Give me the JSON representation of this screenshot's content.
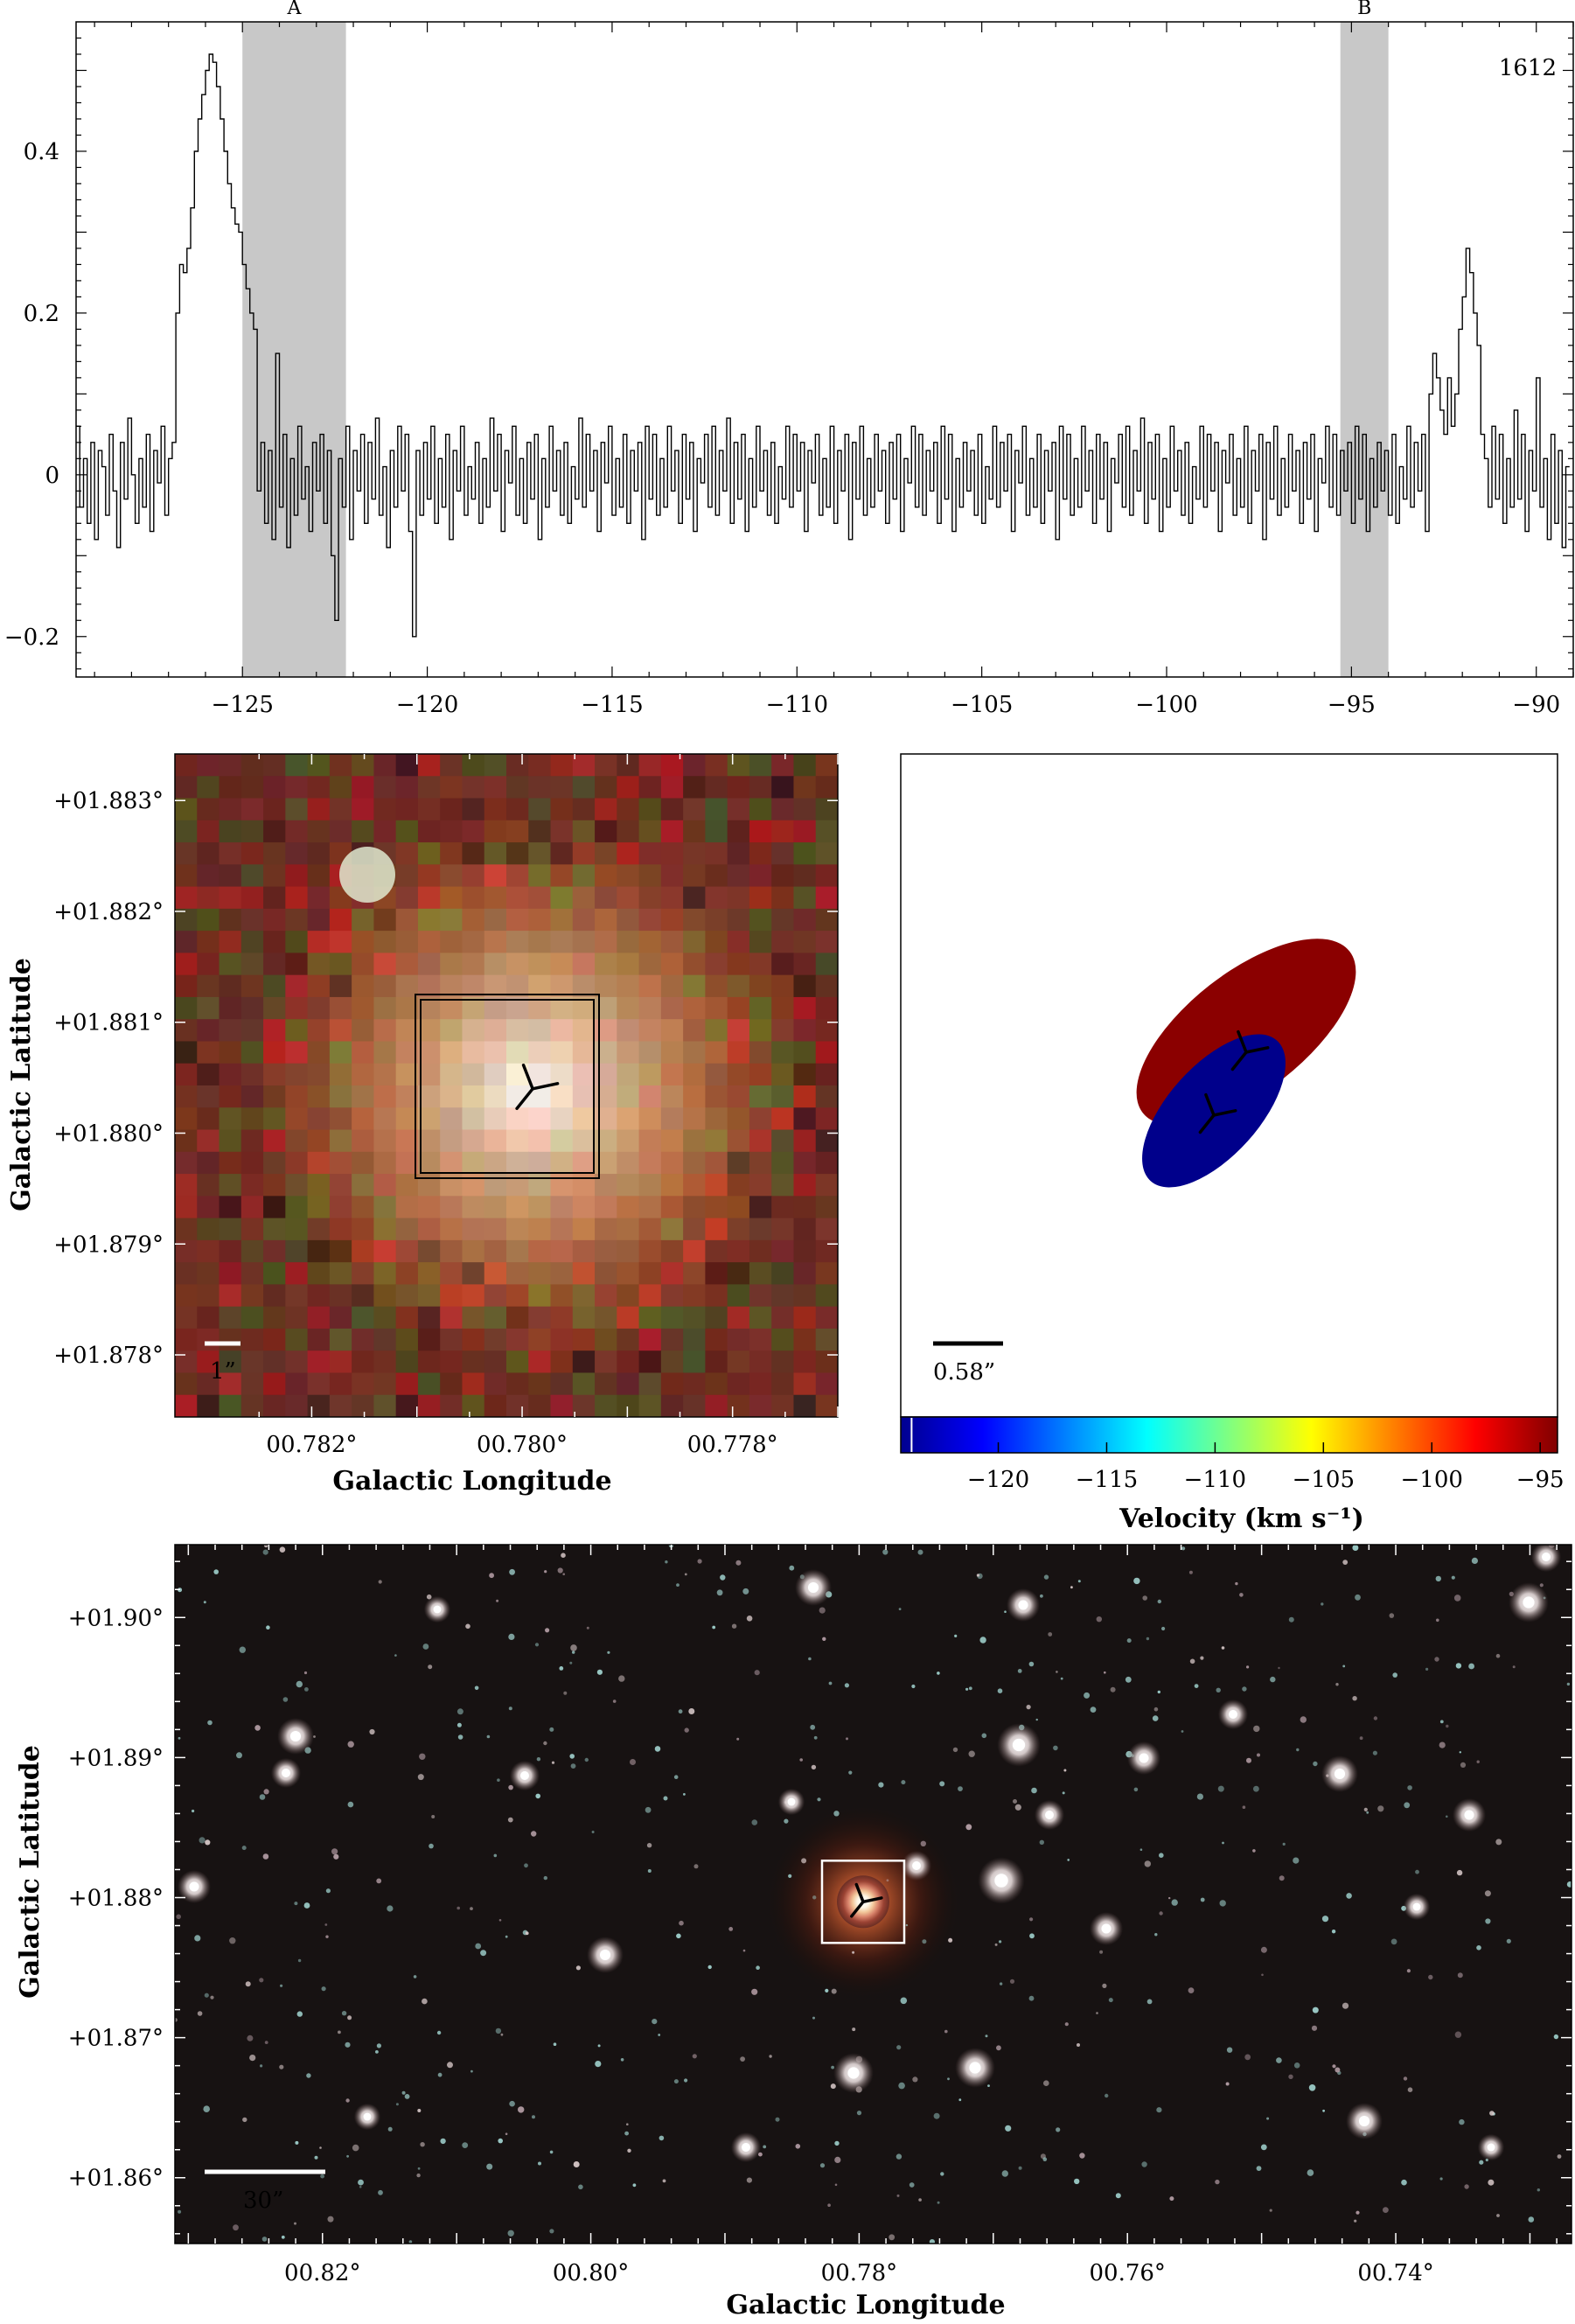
{
  "chart_data": [
    {
      "type": "line",
      "panel": "spectrum",
      "annotation": "1612",
      "xlim": [
        -129.5,
        -89
      ],
      "ylim": [
        -0.25,
        0.56
      ],
      "xticks": [
        -125,
        -120,
        -115,
        -110,
        -105,
        -100,
        -95,
        -90
      ],
      "xtick_labels": [
        "−125",
        "−120",
        "−115",
        "−110",
        "−105",
        "−100",
        "−95",
        "−90"
      ],
      "yticks": [
        -0.2,
        0,
        0.2,
        0.4
      ],
      "ytick_labels": [
        "−0.2",
        "0",
        "0.2",
        "0.4"
      ],
      "shaded_regions": [
        {
          "label": "A",
          "x0": -125.0,
          "x1": -122.2
        },
        {
          "label": "B",
          "x0": -95.3,
          "x1": -94.0
        }
      ],
      "series": [
        {
          "style": "step",
          "x_start": -129.5,
          "x_step": 0.1,
          "values": [
            0.06,
            -0.04,
            0.02,
            -0.06,
            0.04,
            -0.08,
            0.03,
            0.01,
            -0.05,
            0.05,
            -0.02,
            -0.09,
            0.04,
            -0.03,
            0.07,
            0.0,
            -0.06,
            0.02,
            -0.04,
            0.05,
            -0.07,
            0.03,
            -0.01,
            0.06,
            -0.05,
            0.02,
            0.04,
            0.2,
            0.26,
            0.25,
            0.28,
            0.33,
            0.4,
            0.44,
            0.47,
            0.5,
            0.52,
            0.51,
            0.48,
            0.44,
            0.4,
            0.36,
            0.33,
            0.31,
            0.3,
            0.26,
            0.23,
            0.2,
            0.18,
            -0.02,
            0.04,
            -0.06,
            0.03,
            -0.08,
            0.15,
            -0.04,
            0.05,
            -0.09,
            0.02,
            -0.05,
            0.06,
            -0.03,
            0.01,
            -0.07,
            0.04,
            -0.02,
            0.05,
            -0.06,
            0.03,
            -0.1,
            -0.18,
            0.02,
            -0.04,
            0.06,
            -0.08,
            0.03,
            -0.02,
            0.05,
            -0.06,
            0.04,
            -0.03,
            0.07,
            -0.05,
            0.01,
            -0.09,
            0.03,
            -0.04,
            0.06,
            -0.02,
            0.05,
            -0.07,
            -0.2,
            0.03,
            -0.05,
            0.04,
            -0.03,
            0.06,
            -0.06,
            0.02,
            -0.04,
            0.05,
            -0.08,
            0.03,
            -0.02,
            0.06,
            -0.05,
            0.01,
            -0.03,
            0.04,
            -0.06,
            0.02,
            -0.04,
            0.07,
            -0.02,
            0.05,
            -0.07,
            0.03,
            -0.01,
            0.06,
            -0.05,
            0.02,
            -0.06,
            0.04,
            -0.03,
            0.05,
            -0.08,
            0.02,
            -0.04,
            0.06,
            -0.02,
            0.03,
            -0.05,
            0.04,
            -0.06,
            0.01,
            -0.03,
            0.07,
            -0.04,
            0.05,
            -0.02,
            0.03,
            -0.07,
            0.04,
            -0.01,
            0.06,
            -0.05,
            0.02,
            -0.04,
            0.05,
            -0.06,
            0.03,
            -0.02,
            0.04,
            -0.08,
            0.06,
            -0.03,
            0.05,
            -0.05,
            0.02,
            -0.04,
            0.06,
            -0.02,
            0.03,
            -0.06,
            0.05,
            -0.03,
            0.04,
            -0.07,
            0.02,
            -0.01,
            0.05,
            -0.04,
            0.06,
            -0.05,
            0.03,
            -0.02,
            0.07,
            -0.06,
            0.04,
            -0.03,
            0.05,
            -0.07,
            0.02,
            -0.04,
            0.06,
            -0.02,
            0.03,
            -0.05,
            0.04,
            -0.06,
            0.01,
            -0.03,
            0.06,
            -0.04,
            0.05,
            -0.02,
            0.04,
            -0.07,
            0.03,
            -0.01,
            0.05,
            -0.05,
            0.02,
            -0.04,
            0.06,
            -0.06,
            0.03,
            -0.02,
            0.05,
            -0.08,
            0.04,
            -0.03,
            0.06,
            -0.05,
            0.02,
            -0.04,
            0.05,
            -0.02,
            0.03,
            -0.06,
            0.04,
            -0.03,
            0.05,
            -0.07,
            0.02,
            -0.01,
            0.06,
            -0.04,
            0.05,
            -0.05,
            0.03,
            -0.02,
            0.04,
            -0.06,
            0.06,
            -0.03,
            0.05,
            -0.07,
            0.02,
            -0.04,
            0.04,
            -0.02,
            0.03,
            -0.05,
            0.05,
            -0.06,
            0.01,
            -0.03,
            0.06,
            -0.04,
            0.04,
            -0.02,
            0.05,
            -0.07,
            0.03,
            -0.01,
            0.06,
            -0.05,
            0.02,
            -0.04,
            0.05,
            -0.06,
            0.03,
            -0.02,
            0.04,
            -0.08,
            0.06,
            -0.03,
            0.05,
            -0.05,
            0.02,
            -0.04,
            0.06,
            -0.02,
            0.03,
            -0.06,
            0.05,
            -0.03,
            0.04,
            -0.07,
            0.02,
            -0.01,
            0.05,
            -0.04,
            0.06,
            -0.05,
            0.03,
            -0.02,
            0.07,
            -0.06,
            0.04,
            -0.03,
            0.05,
            -0.07,
            0.02,
            -0.04,
            0.06,
            -0.02,
            0.03,
            -0.05,
            0.04,
            -0.06,
            0.01,
            -0.03,
            0.06,
            -0.04,
            0.05,
            -0.02,
            0.04,
            -0.07,
            0.03,
            -0.01,
            0.05,
            -0.05,
            0.02,
            -0.04,
            0.06,
            -0.06,
            0.03,
            -0.02,
            0.05,
            -0.08,
            0.04,
            -0.03,
            0.06,
            -0.05,
            0.02,
            -0.04,
            0.05,
            -0.02,
            0.03,
            -0.06,
            0.04,
            -0.03,
            0.05,
            -0.07,
            0.02,
            -0.01,
            0.06,
            -0.04,
            0.05,
            -0.05,
            0.03,
            -0.02,
            0.04,
            -0.06,
            0.06,
            -0.03,
            0.05,
            -0.07,
            0.02,
            -0.04,
            0.04,
            -0.02,
            0.03,
            -0.05,
            0.05,
            -0.06,
            0.01,
            -0.03,
            0.06,
            -0.04,
            0.04,
            -0.02,
            0.05,
            -0.07,
            0.1,
            0.15,
            0.12,
            0.08,
            0.05,
            0.12,
            0.06,
            0.1,
            0.18,
            0.22,
            0.28,
            0.25,
            0.2,
            0.16,
            0.05,
            0.02,
            -0.04,
            0.06,
            -0.03,
            0.05,
            -0.06,
            0.02,
            -0.04,
            0.08,
            -0.03,
            0.05,
            -0.07,
            0.03,
            -0.02,
            0.12,
            -0.04,
            0.02,
            -0.08,
            0.05,
            -0.06,
            0.03,
            -0.09,
            0.01
          ]
        }
      ]
    },
    {
      "type": "image",
      "panel": "zoom-rgb",
      "xlabel": "Galactic Longitude",
      "ylabel": "Galactic Latitude",
      "xlim": [
        0.7833,
        0.777
      ],
      "ylim": [
        0.87744,
        0.88342
      ],
      "xticks": [
        0.782,
        0.78,
        0.778
      ],
      "xtick_labels": [
        "00.782°",
        "00.780°",
        "00.778°"
      ],
      "yticks": [
        0.878,
        0.879,
        0.88,
        0.881,
        0.882,
        0.883
      ],
      "ytick_labels": [
        "+01.878°",
        "+01.879°",
        "+01.880°",
        "+01.881°",
        "+01.882°",
        "+01.883°"
      ],
      "scale_bar": "1”",
      "marker_position": [
        0.7799,
        0.8804
      ]
    },
    {
      "type": "scatter",
      "panel": "maser-ellipses",
      "scale_bar": "0.58”",
      "colorbar": {
        "label": "Velocity (km s⁻¹)",
        "range": [
          -124.5,
          -94.2
        ],
        "ticks": [
          -120,
          -115,
          -110,
          -105,
          -100,
          -95
        ],
        "tick_labels": [
          "−120",
          "−115",
          "−110",
          "−105",
          "−100",
          "−95"
        ]
      },
      "components": [
        {
          "label": "red",
          "velocity": -94,
          "color": "#8b0000"
        },
        {
          "label": "blue",
          "velocity": -124,
          "color": "#00008b"
        }
      ]
    },
    {
      "type": "image",
      "panel": "wide-field-rgb",
      "xlabel": "Galactic Longitude",
      "ylabel": "Galactic Latitude",
      "xlim": [
        0.831,
        0.7269
      ],
      "ylim": [
        0.8553,
        0.9052
      ],
      "xticks": [
        0.82,
        0.8,
        0.78,
        0.76,
        0.74
      ],
      "xtick_labels": [
        "00.82°",
        "00.80°",
        "00.78°",
        "00.76°",
        "00.74°"
      ],
      "yticks": [
        0.86,
        0.87,
        0.88,
        0.89,
        0.9
      ],
      "ytick_labels": [
        "+01.86°",
        "+01.87°",
        "+01.88°",
        "+01.89°",
        "+01.90°"
      ],
      "scale_bar": "30”",
      "marker_position": [
        0.7797,
        0.8797
      ]
    }
  ]
}
